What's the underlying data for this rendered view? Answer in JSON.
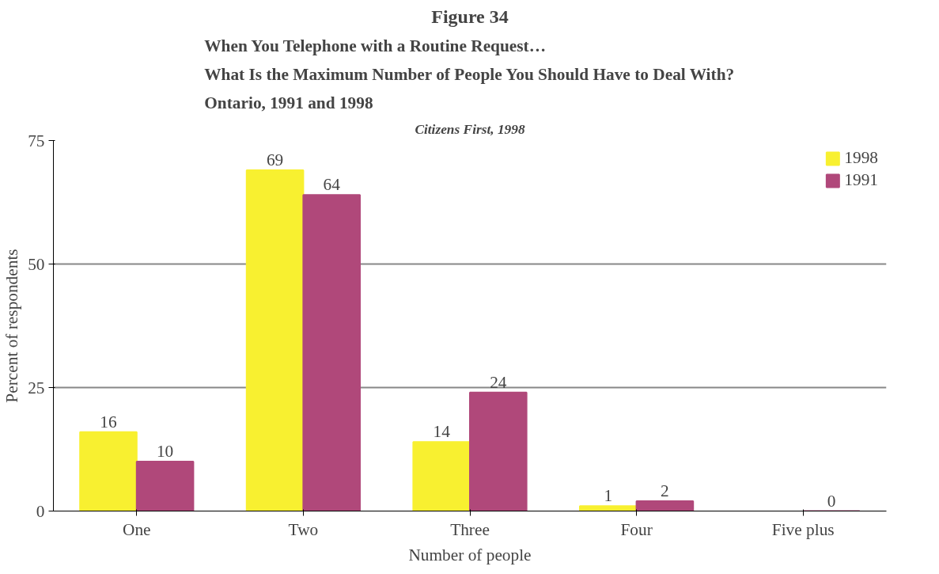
{
  "chart_data": {
    "type": "bar",
    "title": "Figure 34",
    "subtitle": "When You Telephone with a Routine Request…\nWhat Is the Maximum Number of People You Should Have to Deal With?\nOntario, 1991 and 1998",
    "annotations": [
      "Citizens First, 1998"
    ],
    "xlabel": "Number of people",
    "ylabel": "Percent of respondents",
    "categories": [
      "One",
      "Two",
      "Three",
      "Four",
      "Five plus"
    ],
    "series": [
      {
        "name": "1998",
        "color": "#f8f030",
        "values": [
          16,
          69,
          14,
          1,
          null
        ]
      },
      {
        "name": "1991",
        "color": "#b0487a",
        "values": [
          10,
          64,
          24,
          2,
          0
        ]
      }
    ],
    "ylim": [
      0,
      75
    ],
    "yticks": [
      0,
      25,
      50,
      75
    ],
    "grid": "y",
    "legend": "top right",
    "data_labels": true
  }
}
